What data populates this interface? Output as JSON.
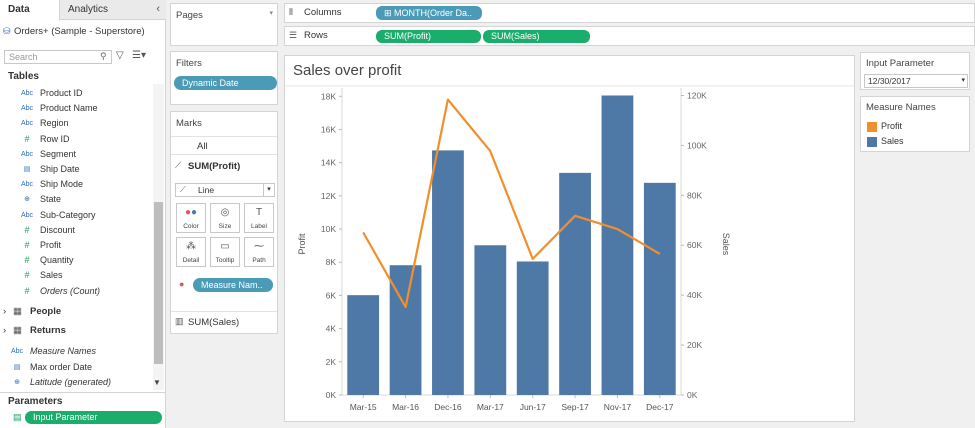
{
  "data_pane": {
    "tabs": [
      "Data",
      "Analytics"
    ],
    "collapse_glyph": "‹",
    "datasource": "Orders+ (Sample - Superstore)",
    "search_placeholder": "Search",
    "tables_header": "Tables",
    "fields": [
      {
        "type": "Abc",
        "label": "Product ID",
        "italic": false
      },
      {
        "type": "Abc",
        "label": "Product Name",
        "italic": false
      },
      {
        "type": "Abc",
        "label": "Region",
        "italic": false
      },
      {
        "type": "#",
        "label": "Row ID",
        "italic": false
      },
      {
        "type": "Abc",
        "label": "Segment",
        "italic": false
      },
      {
        "type": "date",
        "label": "Ship Date",
        "italic": false
      },
      {
        "type": "Abc",
        "label": "Ship Mode",
        "italic": false
      },
      {
        "type": "globe",
        "label": "State",
        "italic": false
      },
      {
        "type": "Abc",
        "label": "Sub-Category",
        "italic": false
      },
      {
        "type": "#",
        "label": "Discount",
        "italic": false
      },
      {
        "type": "#",
        "label": "Profit",
        "italic": false
      },
      {
        "type": "#",
        "label": "Quantity",
        "italic": false
      },
      {
        "type": "#",
        "label": "Sales",
        "italic": false
      },
      {
        "type": "#",
        "label": "Orders (Count)",
        "italic": true
      }
    ],
    "groups": [
      "People",
      "Returns"
    ],
    "extra_fields": [
      {
        "type": "Abc",
        "label": "Measure Names",
        "italic": true
      },
      {
        "type": "date",
        "label": "Max order Date",
        "italic": false
      },
      {
        "type": "globe",
        "label": "Latitude (generated)",
        "italic": true
      }
    ],
    "parameters_header": "Parameters",
    "parameter_pill": "Input Parameter"
  },
  "pages": {
    "title": "Pages"
  },
  "filters": {
    "title": "Filters",
    "pill": "Dynamic Date"
  },
  "marks": {
    "title": "Marks",
    "all": "All",
    "profit_label": "SUM(Profit)",
    "mark_type": "Line",
    "buttons": [
      "Color",
      "Size",
      "Label",
      "Detail",
      "Tooltip",
      "Path"
    ],
    "measure_pill": "Measure Nam..",
    "sales_label": "SUM(Sales)"
  },
  "shelves": {
    "columns_label": "Columns",
    "columns_pill": "MONTH(Order Da..",
    "rows_label": "Rows",
    "rows_pills": [
      "SUM(Profit)",
      "SUM(Sales)"
    ]
  },
  "input_parameter": {
    "title": "Input Parameter",
    "value": "12/30/2017"
  },
  "measure_legend": {
    "title": "Measure Names",
    "items": [
      {
        "label": "Profit",
        "color": "#f28e2b"
      },
      {
        "label": "Sales",
        "color": "#4e79a7"
      }
    ]
  },
  "chart_data": {
    "type": "bar",
    "title": "Sales over profit",
    "categories": [
      "Mar-15",
      "Mar-16",
      "Dec-16",
      "Mar-17",
      "Jun-17",
      "Sep-17",
      "Nov-17",
      "Dec-17"
    ],
    "series": [
      {
        "name": "Sales",
        "axis": "right",
        "type": "bar",
        "values": [
          40000,
          52000,
          98000,
          60000,
          53500,
          89000,
          120000,
          85000
        ],
        "color": "#4e79a7"
      },
      {
        "name": "Profit",
        "axis": "left",
        "type": "line",
        "values": [
          9800,
          5300,
          17800,
          14700,
          8200,
          10800,
          10000,
          8500
        ],
        "color": "#f28e2b"
      }
    ],
    "y_left": {
      "label": "Profit",
      "ticks": [
        "0K",
        "2K",
        "4K",
        "6K",
        "8K",
        "10K",
        "12K",
        "14K",
        "16K",
        "18K"
      ],
      "range": [
        0,
        18500
      ]
    },
    "y_right": {
      "label": "Sales",
      "ticks": [
        "0K",
        "20K",
        "40K",
        "60K",
        "80K",
        "100K",
        "120K"
      ],
      "range": [
        0,
        123000
      ]
    }
  }
}
